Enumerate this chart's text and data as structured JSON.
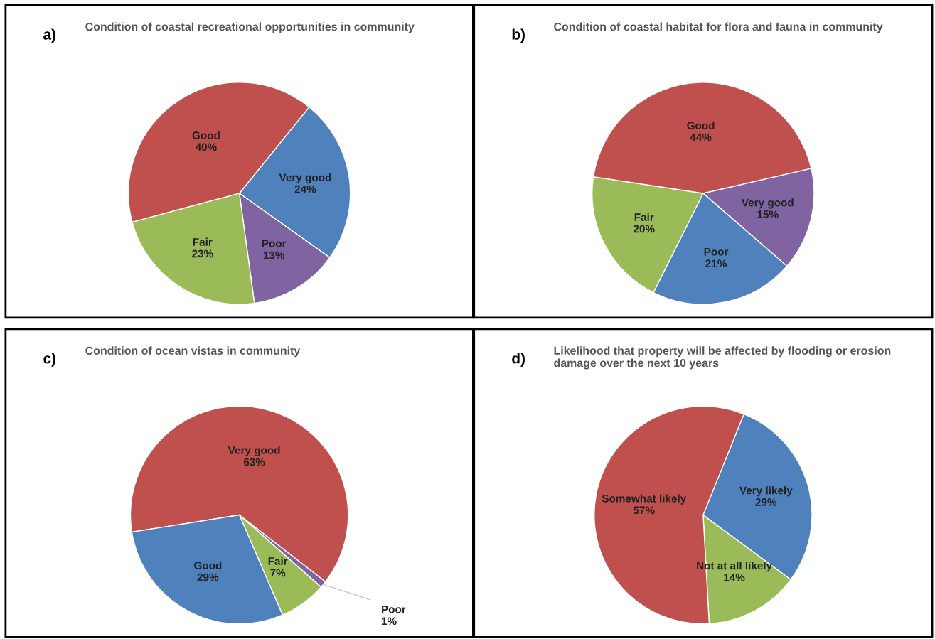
{
  "chart_data": [
    {
      "type": "pie",
      "title": "Condition of coastal recreational opportunities in community",
      "annotations": [
        "a)"
      ],
      "categories": [
        "Very good",
        "Poor",
        "Fair",
        "Good"
      ],
      "values": [
        24,
        13,
        23,
        40
      ],
      "value_labels": [
        "24%",
        "13%",
        "23%",
        "40%"
      ],
      "colors": [
        "#4f81bd",
        "#8064a2",
        "#9bbb59",
        "#c0504d"
      ]
    },
    {
      "type": "pie",
      "title": "Condition of coastal habitat for flora and fauna in community",
      "annotations": [
        "b)"
      ],
      "categories": [
        "Very good",
        "Poor",
        "Fair",
        "Good"
      ],
      "values": [
        15,
        21,
        20,
        44
      ],
      "value_labels": [
        "15%",
        "21%",
        "20%",
        "44%"
      ],
      "colors": [
        "#8064a2",
        "#4f81bd",
        "#9bbb59",
        "#c0504d"
      ]
    },
    {
      "type": "pie",
      "title": "Condition of ocean vistas in community",
      "annotations": [
        "c)"
      ],
      "categories": [
        "Very good",
        "Poor",
        "Fair",
        "Good"
      ],
      "values": [
        63,
        1,
        7,
        29
      ],
      "value_labels": [
        "63%",
        "1%",
        "7%",
        "29%"
      ],
      "colors": [
        "#c0504d",
        "#8064a2",
        "#9bbb59",
        "#4f81bd"
      ]
    },
    {
      "type": "pie",
      "title": "Likelihood that property will be affected by flooding or erosion damage over the next 10 years",
      "annotations": [
        "d)"
      ],
      "categories": [
        "Very likely",
        "Not at all likely",
        "Somewhat likely"
      ],
      "values": [
        29,
        14,
        57
      ],
      "value_labels": [
        "29%",
        "14%",
        "57%"
      ],
      "colors": [
        "#4f81bd",
        "#9bbb59",
        "#c0504d"
      ]
    }
  ]
}
